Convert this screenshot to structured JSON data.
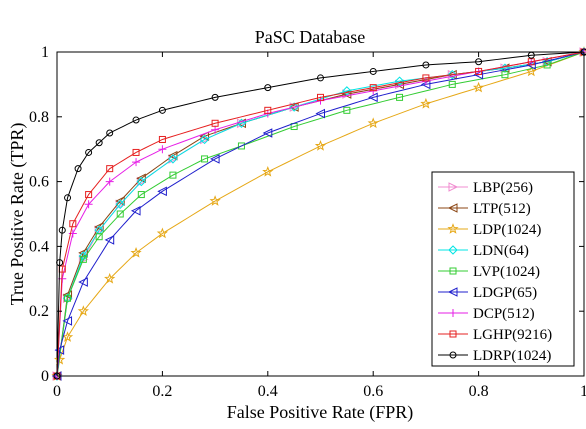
{
  "chart_data": {
    "type": "line",
    "title": "PaSC Database",
    "xlabel": "False Positive Rate (FPR)",
    "ylabel": "True Positive Rate (TPR)",
    "xlim": [
      0,
      1
    ],
    "ylim": [
      0,
      1
    ],
    "xticks": [
      "0",
      "0.2",
      "0.4",
      "0.6",
      "0.8",
      "1"
    ],
    "yticks": [
      "0",
      "0.2",
      "0.4",
      "0.6",
      "0.8",
      "1"
    ],
    "grid": false,
    "legend_position": "bottom-right",
    "series": [
      {
        "name": "LBP(256)",
        "color": "#f08cd0",
        "marker": "triangle-right",
        "x": [
          0,
          0.02,
          0.05,
          0.08,
          0.12,
          0.16,
          0.22,
          0.28,
          0.35,
          0.45,
          0.55,
          0.65,
          0.75,
          0.85,
          0.93,
          1.0
        ],
        "y": [
          0,
          0.24,
          0.36,
          0.45,
          0.53,
          0.6,
          0.67,
          0.73,
          0.78,
          0.83,
          0.87,
          0.9,
          0.93,
          0.95,
          0.97,
          1.0
        ]
      },
      {
        "name": "LTP(512)",
        "color": "#8b4513",
        "marker": "triangle-left",
        "x": [
          0,
          0.02,
          0.05,
          0.08,
          0.12,
          0.16,
          0.22,
          0.28,
          0.35,
          0.45,
          0.55,
          0.65,
          0.75,
          0.85,
          0.93,
          1.0
        ],
        "y": [
          0,
          0.25,
          0.38,
          0.46,
          0.54,
          0.61,
          0.68,
          0.74,
          0.78,
          0.83,
          0.87,
          0.9,
          0.93,
          0.95,
          0.97,
          1.0
        ]
      },
      {
        "name": "LDP(1024)",
        "color": "#e6a817",
        "marker": "star",
        "x": [
          0,
          0.005,
          0.02,
          0.05,
          0.1,
          0.15,
          0.2,
          0.3,
          0.4,
          0.5,
          0.6,
          0.7,
          0.8,
          0.9,
          1.0
        ],
        "y": [
          0,
          0.05,
          0.12,
          0.2,
          0.3,
          0.38,
          0.44,
          0.54,
          0.63,
          0.71,
          0.78,
          0.84,
          0.89,
          0.94,
          1.0
        ]
      },
      {
        "name": "LDN(64)",
        "color": "#00e5e5",
        "marker": "diamond",
        "x": [
          0,
          0.02,
          0.05,
          0.08,
          0.12,
          0.16,
          0.22,
          0.28,
          0.35,
          0.45,
          0.55,
          0.65,
          0.75,
          0.85,
          0.93,
          1.0
        ],
        "y": [
          0,
          0.24,
          0.37,
          0.45,
          0.53,
          0.6,
          0.67,
          0.73,
          0.78,
          0.83,
          0.88,
          0.91,
          0.93,
          0.95,
          0.97,
          1.0
        ]
      },
      {
        "name": "LVP(1024)",
        "color": "#33cc33",
        "marker": "square",
        "x": [
          0,
          0.02,
          0.05,
          0.08,
          0.12,
          0.16,
          0.22,
          0.28,
          0.35,
          0.45,
          0.55,
          0.65,
          0.75,
          0.85,
          0.93,
          1.0
        ],
        "y": [
          0,
          0.24,
          0.36,
          0.43,
          0.5,
          0.56,
          0.62,
          0.67,
          0.71,
          0.77,
          0.82,
          0.86,
          0.9,
          0.93,
          0.96,
          1.0
        ]
      },
      {
        "name": "LDGP(65)",
        "color": "#1f1fcc",
        "marker": "triangle-left",
        "x": [
          0,
          0.005,
          0.02,
          0.05,
          0.1,
          0.15,
          0.2,
          0.3,
          0.4,
          0.5,
          0.6,
          0.7,
          0.8,
          0.9,
          1.0
        ],
        "y": [
          0,
          0.08,
          0.17,
          0.29,
          0.42,
          0.51,
          0.57,
          0.67,
          0.75,
          0.81,
          0.86,
          0.9,
          0.93,
          0.96,
          1.0
        ]
      },
      {
        "name": "DCP(512)",
        "color": "#e61ee6",
        "marker": "plus",
        "x": [
          0,
          0.01,
          0.03,
          0.06,
          0.1,
          0.15,
          0.2,
          0.3,
          0.4,
          0.5,
          0.6,
          0.7,
          0.8,
          0.9,
          1.0
        ],
        "y": [
          0,
          0.3,
          0.44,
          0.53,
          0.6,
          0.66,
          0.7,
          0.76,
          0.81,
          0.85,
          0.88,
          0.91,
          0.94,
          0.97,
          1.0
        ]
      },
      {
        "name": "LGHP(9216)",
        "color": "#e62020",
        "marker": "square",
        "x": [
          0,
          0.01,
          0.03,
          0.06,
          0.1,
          0.15,
          0.2,
          0.3,
          0.4,
          0.5,
          0.6,
          0.7,
          0.8,
          0.9,
          1.0
        ],
        "y": [
          0,
          0.33,
          0.47,
          0.56,
          0.64,
          0.69,
          0.73,
          0.78,
          0.82,
          0.86,
          0.89,
          0.92,
          0.94,
          0.97,
          1.0
        ]
      },
      {
        "name": "LDRP(1024)",
        "color": "#000000",
        "marker": "circle",
        "x": [
          0,
          0.005,
          0.01,
          0.02,
          0.04,
          0.06,
          0.08,
          0.1,
          0.15,
          0.2,
          0.3,
          0.4,
          0.5,
          0.6,
          0.7,
          0.8,
          0.9,
          1.0
        ],
        "y": [
          0,
          0.35,
          0.45,
          0.55,
          0.64,
          0.69,
          0.72,
          0.75,
          0.79,
          0.82,
          0.86,
          0.89,
          0.92,
          0.94,
          0.96,
          0.97,
          0.99,
          1.0
        ]
      }
    ]
  }
}
